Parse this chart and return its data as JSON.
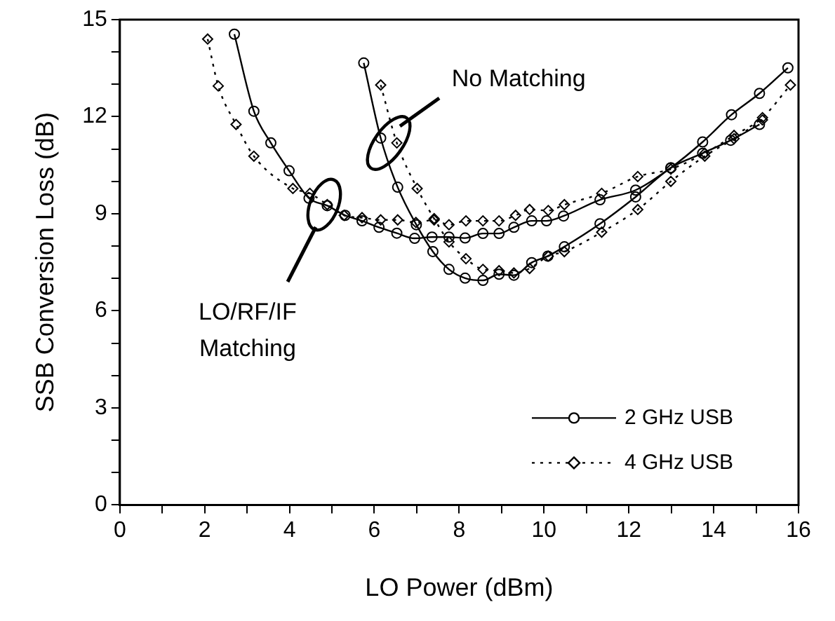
{
  "chart_data": {
    "type": "line",
    "xlabel": "LO Power (dBm)",
    "ylabel": "SSB Conversion Loss (dB)",
    "xlim": [
      0,
      16
    ],
    "ylim": [
      0,
      15
    ],
    "xticks": [
      0,
      {
        "value": 1,
        "label": null
      },
      2,
      {
        "value": 3,
        "label": null
      },
      4,
      {
        "value": 5,
        "label": null
      },
      6,
      {
        "value": 7,
        "label": null
      },
      8,
      {
        "value": 9,
        "label": null
      },
      10,
      {
        "value": 11,
        "label": null
      },
      12,
      {
        "value": 13,
        "label": null
      },
      14,
      {
        "value": 15,
        "label": null
      },
      16
    ],
    "yticks": [
      0,
      {
        "value": 1,
        "label": null
      },
      {
        "value": 2,
        "label": null
      },
      3,
      {
        "value": 4,
        "label": null
      },
      {
        "value": 5,
        "label": null
      },
      6,
      {
        "value": 7,
        "label": null
      },
      {
        "value": 8,
        "label": null
      },
      9,
      {
        "value": 10,
        "label": null
      },
      {
        "value": 11,
        "label": null
      },
      12,
      {
        "value": 13,
        "label": null
      },
      {
        "value": 14,
        "label": null
      },
      15
    ],
    "grid": false,
    "legend": "bottom right",
    "annotations": [
      "No Matching",
      "LO/RF/IF Matching"
    ],
    "series": [
      {
        "name": "2 GHz USB",
        "color": "#000000",
        "marker": "circle",
        "line_style": "solid",
        "x": [
          2.7,
          3.16,
          3.56,
          3.99,
          4.46,
          4.89,
          5.31,
          5.71,
          6.11,
          6.53,
          6.95,
          7.36,
          7.76,
          8.14,
          8.56,
          8.94,
          9.29,
          9.71,
          10.06,
          10.46,
          11.32,
          12.16,
          12.99,
          13.74,
          14.42,
          15.08,
          15.75
        ],
        "values": [
          14.55,
          12.17,
          11.19,
          10.33,
          9.48,
          9.25,
          8.95,
          8.78,
          8.58,
          8.4,
          8.24,
          8.28,
          8.28,
          8.25,
          8.39,
          8.39,
          8.58,
          8.78,
          8.78,
          8.93,
          9.43,
          9.73,
          10.42,
          11.22,
          12.06,
          12.72,
          13.51
        ]
      },
      {
        "name": "4 GHz USB",
        "color": "#000000",
        "marker": "diamond",
        "line_style": "dotted",
        "x": [
          2.07,
          2.32,
          2.74,
          3.16,
          4.08,
          4.48,
          4.89,
          5.29,
          5.71,
          6.15,
          6.55,
          6.98,
          7.41,
          7.76,
          8.16,
          8.56,
          8.94,
          9.33,
          9.66,
          10.1,
          10.48,
          11.36,
          12.21,
          12.99,
          13.79,
          14.48,
          15.15,
          15.81
        ],
        "values": [
          14.4,
          12.95,
          11.76,
          10.78,
          9.78,
          9.63,
          9.28,
          8.95,
          8.88,
          8.81,
          8.81,
          8.73,
          8.81,
          8.66,
          8.78,
          8.78,
          8.78,
          8.95,
          9.13,
          9.1,
          9.28,
          9.63,
          10.15,
          10.38,
          10.87,
          11.42,
          11.97,
          12.98
        ]
      },
      {
        "color": "#000000",
        "marker": "circle",
        "line_style": "solid",
        "x": [
          5.75,
          6.15,
          6.55,
          6.99,
          7.38,
          7.76,
          8.14,
          8.56,
          8.94,
          9.29,
          9.71,
          10.09,
          10.48,
          11.32,
          12.16,
          12.99,
          13.74,
          14.4,
          15.08
        ],
        "values": [
          13.66,
          11.34,
          9.82,
          8.66,
          7.83,
          7.28,
          7.01,
          6.94,
          7.13,
          7.1,
          7.49,
          7.69,
          7.98,
          8.69,
          9.52,
          10.42,
          10.87,
          11.27,
          11.76
        ]
      },
      {
        "color": "#000000",
        "marker": "diamond",
        "line_style": "dotted",
        "x": [
          6.15,
          6.53,
          7.01,
          7.41,
          7.76,
          8.16,
          8.56,
          8.94,
          9.29,
          9.66,
          10.1,
          10.48,
          11.36,
          12.21,
          12.99,
          13.79,
          14.48,
          15.15
        ],
        "values": [
          12.98,
          11.19,
          9.78,
          8.85,
          8.13,
          7.61,
          7.28,
          7.24,
          7.17,
          7.31,
          7.69,
          7.83,
          8.43,
          9.13,
          10.0,
          10.78,
          11.32,
          11.9
        ]
      }
    ]
  }
}
